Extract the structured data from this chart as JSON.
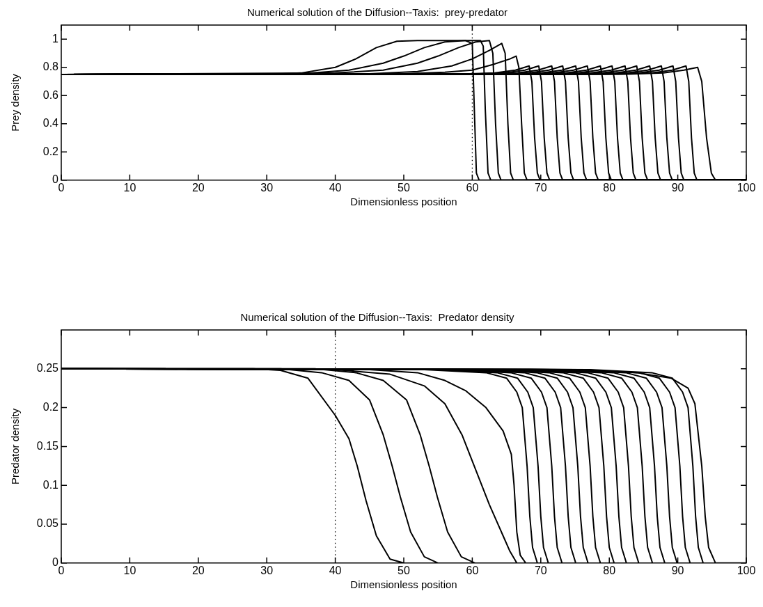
{
  "chart_data": [
    {
      "type": "line",
      "title": "Numerical solution of the Diffusion--Taxis:  prey-predator",
      "xlabel": "Dimensionless position",
      "ylabel": "Prey density",
      "xlim": [
        0,
        100
      ],
      "xticks": [
        0,
        10,
        20,
        30,
        40,
        50,
        60,
        70,
        80,
        90,
        100
      ],
      "ylim": [
        0,
        1.1
      ],
      "yticks": [
        0,
        0.2,
        0.4,
        0.6,
        0.8,
        1
      ],
      "line_style": "solid",
      "ref_lines": [
        {
          "axis": "x",
          "value": 60,
          "line_style": "dotted",
          "color": "#000000"
        }
      ],
      "series": [
        {
          "color": "#000000",
          "x": [
            0,
            30,
            35,
            40,
            43,
            46,
            49,
            52,
            59,
            60,
            60.3,
            60.6,
            61,
            100
          ],
          "values": [
            0.75,
            0.75,
            0.76,
            0.8,
            0.86,
            0.94,
            0.985,
            0.99,
            0.99,
            0.97,
            0.5,
            0.05,
            0,
            0
          ]
        },
        {
          "color": "#000000",
          "x": [
            0,
            35,
            42,
            47,
            50,
            53,
            56,
            59,
            61.2,
            61.6,
            61.9,
            62.3,
            62.7,
            100
          ],
          "values": [
            0.75,
            0.755,
            0.78,
            0.83,
            0.88,
            0.94,
            0.98,
            0.99,
            0.99,
            0.95,
            0.5,
            0.05,
            0,
            0
          ]
        },
        {
          "color": "#000000",
          "x": [
            0,
            40,
            47,
            52,
            55,
            58,
            60.5,
            62.5,
            63,
            63.4,
            63.8,
            64.2,
            100
          ],
          "values": [
            0.75,
            0.76,
            0.78,
            0.83,
            0.88,
            0.94,
            0.98,
            0.99,
            0.9,
            0.4,
            0.05,
            0,
            0
          ]
        },
        {
          "color": "#000000",
          "x": [
            0,
            45,
            52,
            57,
            60,
            62.5,
            64.3,
            64.8,
            65.2,
            65.6,
            66,
            100
          ],
          "values": [
            0.75,
            0.755,
            0.77,
            0.81,
            0.86,
            0.92,
            0.97,
            0.9,
            0.4,
            0.05,
            0,
            0
          ]
        },
        {
          "color": "#000000",
          "x": [
            0,
            50,
            56,
            60,
            63,
            65.5,
            66.4,
            66.8,
            67.2,
            67.6,
            68,
            100
          ],
          "values": [
            0.75,
            0.755,
            0.765,
            0.78,
            0.82,
            0.86,
            0.88,
            0.8,
            0.4,
            0.05,
            0,
            0
          ]
        },
        {
          "color": "#000000",
          "x": [
            0,
            58.3,
            63.3,
            66.3,
            68.3,
            68.7,
            69.1,
            69.5,
            69.9,
            100
          ],
          "values": [
            0.75,
            0.752,
            0.76,
            0.78,
            0.81,
            0.7,
            0.3,
            0.05,
            0,
            0
          ]
        },
        {
          "color": "#000000",
          "x": [
            0,
            59.7,
            64.7,
            67.7,
            69.7,
            70.1,
            70.5,
            70.9,
            71.3,
            100
          ],
          "values": [
            0.75,
            0.752,
            0.76,
            0.78,
            0.81,
            0.7,
            0.3,
            0.05,
            0,
            0
          ]
        },
        {
          "color": "#000000",
          "x": [
            0,
            61.6,
            66.6,
            69.6,
            71.6,
            72,
            72.4,
            72.8,
            73.2,
            100
          ],
          "values": [
            0.75,
            0.752,
            0.76,
            0.78,
            0.81,
            0.7,
            0.3,
            0.05,
            0,
            0
          ]
        },
        {
          "color": "#000000",
          "x": [
            0,
            63.2,
            68.2,
            71.2,
            73.2,
            73.6,
            74,
            74.4,
            74.8,
            100
          ],
          "values": [
            0.75,
            0.752,
            0.76,
            0.78,
            0.81,
            0.7,
            0.3,
            0.05,
            0,
            0
          ]
        },
        {
          "color": "#000000",
          "x": [
            0,
            65.1,
            70.1,
            73.1,
            75.1,
            75.5,
            75.9,
            76.3,
            76.7,
            100
          ],
          "values": [
            0.75,
            0.752,
            0.76,
            0.78,
            0.81,
            0.7,
            0.3,
            0.05,
            0,
            0
          ]
        },
        {
          "color": "#000000",
          "x": [
            0,
            66.8,
            71.8,
            74.8,
            76.8,
            77.2,
            77.6,
            78,
            78.4,
            100
          ],
          "values": [
            0.75,
            0.752,
            0.76,
            0.78,
            0.81,
            0.7,
            0.3,
            0.05,
            0,
            0
          ]
        },
        {
          "color": "#000000",
          "x": [
            0,
            68.7,
            73.7,
            76.7,
            78.7,
            79.1,
            79.5,
            79.9,
            80.3,
            100
          ],
          "values": [
            0.75,
            0.752,
            0.76,
            0.78,
            0.81,
            0.7,
            0.3,
            0.05,
            0,
            0
          ]
        },
        {
          "color": "#000000",
          "x": [
            0,
            70.4,
            75.4,
            78.4,
            80.4,
            80.8,
            81.2,
            81.6,
            82,
            100
          ],
          "values": [
            0.75,
            0.752,
            0.76,
            0.78,
            0.81,
            0.7,
            0.3,
            0.05,
            0,
            0
          ]
        },
        {
          "color": "#000000",
          "x": [
            0,
            72.3,
            77.3,
            80.3,
            82.3,
            82.7,
            83.1,
            83.5,
            83.9,
            100
          ],
          "values": [
            0.75,
            0.752,
            0.76,
            0.78,
            0.81,
            0.7,
            0.3,
            0.05,
            0,
            0
          ]
        },
        {
          "color": "#000000",
          "x": [
            0,
            74,
            79,
            82,
            84,
            84.4,
            84.8,
            85.2,
            85.6,
            100
          ],
          "values": [
            0.75,
            0.752,
            0.76,
            0.78,
            0.81,
            0.7,
            0.3,
            0.05,
            0,
            0
          ]
        },
        {
          "color": "#000000",
          "x": [
            0,
            75.9,
            80.9,
            83.9,
            85.9,
            86.3,
            86.7,
            87.1,
            87.5,
            100
          ],
          "values": [
            0.75,
            0.752,
            0.76,
            0.78,
            0.81,
            0.7,
            0.3,
            0.05,
            0,
            0
          ]
        },
        {
          "color": "#000000",
          "x": [
            0,
            77.6,
            82.6,
            85.6,
            87.6,
            88,
            88.4,
            88.8,
            89.2,
            100
          ],
          "values": [
            0.75,
            0.752,
            0.76,
            0.78,
            0.81,
            0.7,
            0.3,
            0.05,
            0,
            0
          ]
        },
        {
          "color": "#000000",
          "x": [
            0,
            79.3,
            84.3,
            87.3,
            89.3,
            89.7,
            90.1,
            90.5,
            90.9,
            100
          ],
          "values": [
            0.75,
            0.752,
            0.76,
            0.78,
            0.81,
            0.7,
            0.3,
            0.05,
            0,
            0
          ]
        },
        {
          "color": "#000000",
          "x": [
            0,
            81.2,
            86.2,
            89.2,
            91.2,
            91.6,
            92,
            92.4,
            92.8,
            100
          ],
          "values": [
            0.75,
            0.752,
            0.76,
            0.78,
            0.81,
            0.7,
            0.3,
            0.05,
            0,
            0
          ]
        },
        {
          "color": "#000000",
          "x": [
            0,
            82.9,
            87.9,
            90.9,
            92.9,
            93.5,
            94.2,
            94.9,
            95.5,
            100
          ],
          "values": [
            0.75,
            0.752,
            0.76,
            0.78,
            0.8,
            0.7,
            0.3,
            0.05,
            0,
            0
          ]
        }
      ]
    },
    {
      "type": "line",
      "title": "Numerical solution of the Diffusion--Taxis:  Predator density",
      "xlabel": "Dimensionless position",
      "ylabel": "Predator density",
      "xlim": [
        0,
        100
      ],
      "xticks": [
        0,
        10,
        20,
        30,
        40,
        50,
        60,
        70,
        80,
        90,
        100
      ],
      "ylim": [
        0,
        0.3
      ],
      "yticks": [
        0,
        0.05,
        0.1,
        0.15,
        0.2,
        0.25
      ],
      "line_style": "solid",
      "ref_lines": [
        {
          "axis": "x",
          "value": 40,
          "line_style": "dotted",
          "color": "#000000"
        }
      ],
      "series": [
        {
          "color": "#000000",
          "x": [
            0,
            28,
            32,
            36,
            40,
            42,
            43.2,
            44.5,
            46,
            48,
            50
          ],
          "values": [
            0.25,
            0.25,
            0.248,
            0.238,
            0.19,
            0.16,
            0.125,
            0.08,
            0.035,
            0.005,
            0
          ]
        },
        {
          "color": "#000000",
          "x": [
            0,
            32,
            38,
            42,
            45,
            47,
            48.3,
            49.5,
            51,
            53,
            55
          ],
          "values": [
            0.25,
            0.25,
            0.245,
            0.235,
            0.21,
            0.165,
            0.125,
            0.085,
            0.04,
            0.008,
            0
          ]
        },
        {
          "color": "#000000",
          "x": [
            0,
            37,
            43,
            47,
            50.4,
            52.4,
            53.7,
            54.9,
            56.4,
            58.4,
            60.4
          ],
          "values": [
            0.25,
            0.25,
            0.245,
            0.235,
            0.21,
            0.165,
            0.125,
            0.085,
            0.04,
            0.008,
            0
          ]
        },
        {
          "color": "#000000",
          "x": [
            0,
            40,
            48,
            53,
            56,
            58.5,
            60.5,
            62.5,
            64.5,
            65.5,
            66.5
          ],
          "values": [
            0.25,
            0.249,
            0.243,
            0.228,
            0.205,
            0.165,
            0.12,
            0.075,
            0.035,
            0.015,
            0
          ]
        },
        {
          "color": "#000000",
          "x": [
            0,
            45,
            52,
            56,
            59,
            62,
            64.5,
            65.7,
            66.1,
            66.5,
            67,
            67.8
          ],
          "values": [
            0.25,
            0.249,
            0.245,
            0.235,
            0.222,
            0.2,
            0.17,
            0.14,
            0.1,
            0.04,
            0.01,
            0
          ]
        },
        {
          "color": "#000000",
          "x": [
            0,
            53,
            62,
            65,
            66.5,
            67.3,
            68,
            68.4,
            68.8,
            69.5
          ],
          "values": [
            0.25,
            0.249,
            0.245,
            0.238,
            0.22,
            0.2,
            0.125,
            0.06,
            0.02,
            0
          ]
        },
        {
          "color": "#000000",
          "x": [
            0,
            54.6,
            63.6,
            66.6,
            68.1,
            68.9,
            69.6,
            70,
            70.4,
            71.1
          ],
          "values": [
            0.25,
            0.249,
            0.245,
            0.238,
            0.22,
            0.2,
            0.125,
            0.06,
            0.02,
            0
          ]
        },
        {
          "color": "#000000",
          "x": [
            0,
            56.6,
            65.6,
            68.6,
            70.1,
            70.9,
            71.6,
            72,
            72.4,
            73.1
          ],
          "values": [
            0.25,
            0.249,
            0.245,
            0.238,
            0.22,
            0.2,
            0.125,
            0.06,
            0.02,
            0
          ]
        },
        {
          "color": "#000000",
          "x": [
            0,
            58.6,
            67.6,
            70.6,
            72.1,
            72.9,
            73.6,
            74,
            74.4,
            75.1
          ],
          "values": [
            0.25,
            0.249,
            0.245,
            0.238,
            0.22,
            0.2,
            0.125,
            0.06,
            0.02,
            0
          ]
        },
        {
          "color": "#000000",
          "x": [
            0,
            60.4,
            69.4,
            72.4,
            73.9,
            74.7,
            75.4,
            75.8,
            76.2,
            76.9
          ],
          "values": [
            0.25,
            0.249,
            0.245,
            0.238,
            0.22,
            0.2,
            0.125,
            0.06,
            0.02,
            0
          ]
        },
        {
          "color": "#000000",
          "x": [
            0,
            62.2,
            71.2,
            74.2,
            75.7,
            76.5,
            77.2,
            77.6,
            78,
            78.7
          ],
          "values": [
            0.25,
            0.249,
            0.245,
            0.238,
            0.22,
            0.2,
            0.125,
            0.06,
            0.02,
            0
          ]
        },
        {
          "color": "#000000",
          "x": [
            0,
            64.2,
            73.2,
            76.2,
            77.7,
            78.5,
            79.2,
            79.6,
            80,
            80.7
          ],
          "values": [
            0.25,
            0.249,
            0.245,
            0.238,
            0.22,
            0.2,
            0.125,
            0.06,
            0.02,
            0
          ]
        },
        {
          "color": "#000000",
          "x": [
            0,
            66,
            75,
            78,
            79.5,
            80.3,
            81,
            81.4,
            81.8,
            82.5
          ],
          "values": [
            0.25,
            0.249,
            0.245,
            0.238,
            0.22,
            0.2,
            0.125,
            0.06,
            0.02,
            0
          ]
        },
        {
          "color": "#000000",
          "x": [
            0,
            67.8,
            76.8,
            79.8,
            81.3,
            82.1,
            82.8,
            83.2,
            83.6,
            84.3
          ],
          "values": [
            0.25,
            0.249,
            0.245,
            0.238,
            0.22,
            0.2,
            0.125,
            0.06,
            0.02,
            0
          ]
        },
        {
          "color": "#000000",
          "x": [
            0,
            69.8,
            78.8,
            81.8,
            83.3,
            84.1,
            84.8,
            85.2,
            85.6,
            86.3
          ],
          "values": [
            0.25,
            0.249,
            0.245,
            0.238,
            0.22,
            0.2,
            0.125,
            0.06,
            0.02,
            0
          ]
        },
        {
          "color": "#000000",
          "x": [
            0,
            71.6,
            80.6,
            83.6,
            85.1,
            85.9,
            86.6,
            87,
            87.4,
            88.1
          ],
          "values": [
            0.25,
            0.249,
            0.245,
            0.238,
            0.22,
            0.2,
            0.125,
            0.06,
            0.02,
            0
          ]
        },
        {
          "color": "#000000",
          "x": [
            0,
            73.4,
            82.4,
            85.4,
            86.9,
            87.7,
            88.4,
            88.8,
            89.2,
            89.9
          ],
          "values": [
            0.25,
            0.249,
            0.245,
            0.238,
            0.22,
            0.2,
            0.125,
            0.06,
            0.02,
            0
          ]
        },
        {
          "color": "#000000",
          "x": [
            0,
            75.3,
            84.3,
            87.3,
            88.8,
            89.6,
            90.3,
            90.7,
            91.1,
            91.8
          ],
          "values": [
            0.25,
            0.249,
            0.245,
            0.238,
            0.22,
            0.2,
            0.125,
            0.06,
            0.02,
            0
          ]
        },
        {
          "color": "#000000",
          "x": [
            0,
            77.2,
            86.2,
            89.2,
            90.7,
            91.5,
            92.2,
            92.6,
            93,
            93.7
          ],
          "values": [
            0.25,
            0.249,
            0.245,
            0.238,
            0.22,
            0.2,
            0.125,
            0.06,
            0.02,
            0
          ]
        },
        {
          "color": "#000000",
          "x": [
            0,
            76,
            84,
            89,
            91.5,
            92.5,
            93.5,
            94,
            94.5,
            95.5,
            100
          ],
          "values": [
            0.25,
            0.249,
            0.245,
            0.238,
            0.225,
            0.205,
            0.125,
            0.06,
            0.02,
            0,
            0
          ]
        }
      ]
    }
  ]
}
